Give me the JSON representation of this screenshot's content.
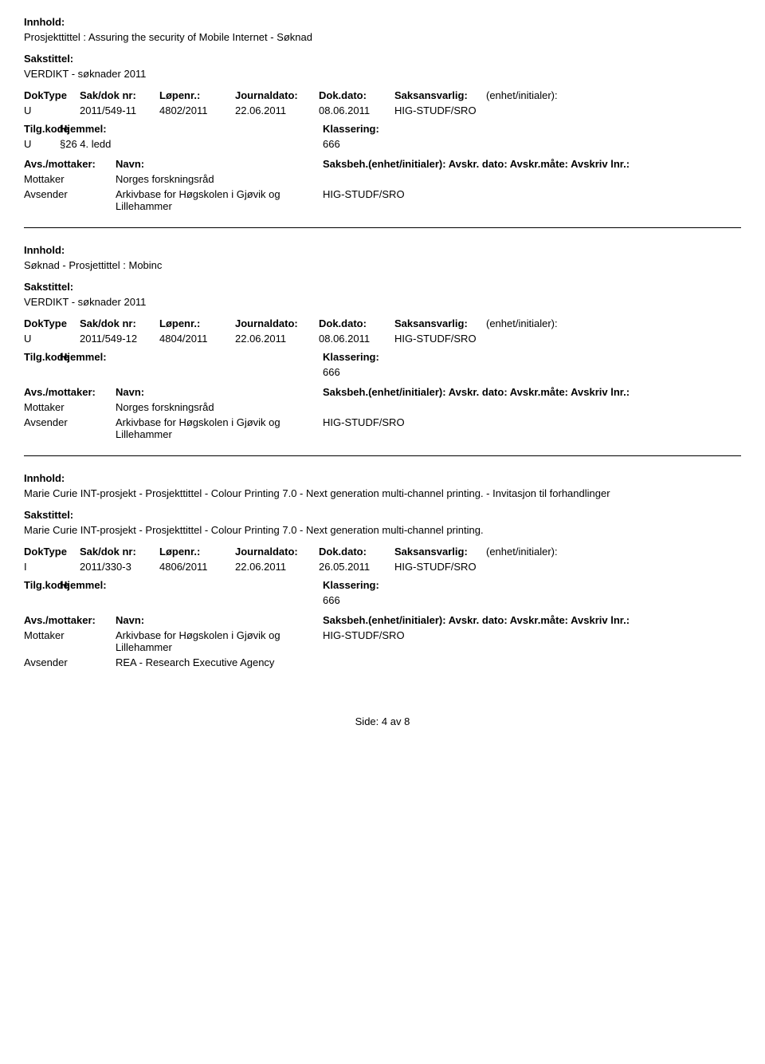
{
  "labels": {
    "innhold": "Innhold:",
    "sakstittel": "Sakstittel:",
    "doktype": "DokType",
    "sakdok": "Sak/dok nr:",
    "lopenr": "Løpenr.:",
    "journaldato": "Journaldato:",
    "dokdato": "Dok.dato:",
    "saksansvarlig": "Saksansvarlig:",
    "enhet_init": "(enhet/initialer):",
    "tilgkode": "Tilg.kode",
    "hjemmel": "Hjemmel:",
    "klassering": "Klassering:",
    "avs_mottaker": "Avs./mottaker:",
    "navn": "Navn:",
    "saksbeh_line": "Saksbeh.(enhet/initialer): Avskr. dato: Avskr.måte: Avskriv lnr.:",
    "mottaker": "Mottaker",
    "avsender": "Avsender"
  },
  "records": [
    {
      "innhold": "Prosjekttittel : Assuring the security of Mobile Internet - Søknad",
      "sakstittel": "VERDIKT - søknader 2011",
      "doktype": "U",
      "sakdok": "2011/549-11",
      "lopenr": "4802/2011",
      "journaldato": "22.06.2011",
      "dokdato": "08.06.2011",
      "saksansvarlig": "HIG-STUDF/SRO",
      "tilg_kode": "U",
      "hjemmel": "§26 4. ledd",
      "klassering": "666",
      "parties": [
        {
          "role": "Mottaker",
          "name": "Norges forskningsråd",
          "code": ""
        },
        {
          "role": "Avsender",
          "name": "Arkivbase for Høgskolen i Gjøvik og Lillehammer",
          "code": "HIG-STUDF/SRO"
        }
      ]
    },
    {
      "innhold": "Søknad - Prosjettittel : Mobinc",
      "sakstittel": "VERDIKT - søknader 2011",
      "doktype": "U",
      "sakdok": "2011/549-12",
      "lopenr": "4804/2011",
      "journaldato": "22.06.2011",
      "dokdato": "08.06.2011",
      "saksansvarlig": "HIG-STUDF/SRO",
      "tilg_kode": "",
      "hjemmel": "",
      "klassering": "666",
      "parties": [
        {
          "role": "Mottaker",
          "name": "Norges forskningsråd",
          "code": ""
        },
        {
          "role": "Avsender",
          "name": "Arkivbase for Høgskolen i Gjøvik og Lillehammer",
          "code": "HIG-STUDF/SRO"
        }
      ]
    },
    {
      "innhold": "Marie Curie INT-prosjekt - Prosjekttittel - Colour Printing 7.0 - Next generation multi-channel printing. - Invitasjon til forhandlinger",
      "sakstittel": "Marie Curie INT-prosjekt - Prosjekttittel - Colour Printing 7.0 - Next generation multi-channel printing.",
      "doktype": "I",
      "sakdok": "2011/330-3",
      "lopenr": "4806/2011",
      "journaldato": "22.06.2011",
      "dokdato": "26.05.2011",
      "saksansvarlig": "HIG-STUDF/SRO",
      "tilg_kode": "",
      "hjemmel": "",
      "klassering": "666",
      "parties": [
        {
          "role": "Mottaker",
          "name": "Arkivbase for Høgskolen i Gjøvik og Lillehammer",
          "code": "HIG-STUDF/SRO"
        },
        {
          "role": "Avsender",
          "name": "REA - Research Executive Agency",
          "code": ""
        }
      ]
    }
  ],
  "footer": {
    "prefix": "Side:",
    "current": "4",
    "sep": "av",
    "total": "8"
  }
}
